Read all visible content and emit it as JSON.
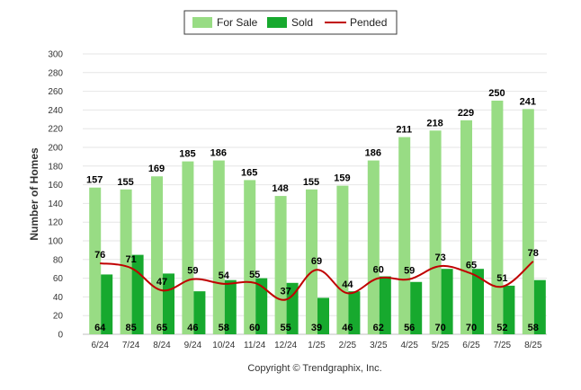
{
  "chart_data": {
    "type": "bar",
    "categories": [
      "6/24",
      "7/24",
      "8/24",
      "9/24",
      "10/24",
      "11/24",
      "12/24",
      "1/25",
      "2/25",
      "3/25",
      "4/25",
      "5/25",
      "6/25",
      "7/25",
      "8/25"
    ],
    "series": [
      {
        "name": "For Sale",
        "kind": "bar",
        "color": "#98dc84",
        "values": [
          157,
          155,
          169,
          185,
          186,
          165,
          148,
          155,
          159,
          186,
          211,
          218,
          229,
          250,
          241
        ]
      },
      {
        "name": "Sold",
        "kind": "bar",
        "color": "#17a92e",
        "values": [
          64,
          85,
          65,
          46,
          58,
          60,
          55,
          39,
          46,
          62,
          56,
          70,
          70,
          52,
          58
        ]
      },
      {
        "name": "Pended",
        "kind": "line",
        "color": "#c00000",
        "values": [
          76,
          71,
          47,
          59,
          54,
          55,
          37,
          69,
          44,
          60,
          59,
          73,
          65,
          51,
          78
        ]
      }
    ],
    "ylabel": "Number of Homes",
    "xlabel": "",
    "ylim": [
      0,
      300
    ],
    "yticks": [
      0,
      20,
      40,
      60,
      80,
      100,
      120,
      140,
      160,
      180,
      200,
      220,
      240,
      260,
      280,
      300
    ],
    "grid": true,
    "legend": "top-center"
  },
  "copyright": "Copyright © Trendgraphix, Inc."
}
